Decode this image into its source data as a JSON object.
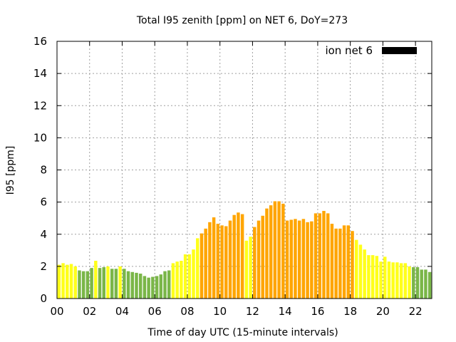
{
  "chart_data": {
    "type": "bar",
    "title": "Total I95 zenith [ppm] on NET 6, DoY=273",
    "xlabel": "Time of day UTC (15-minute intervals)",
    "ylabel": "I95 [ppm]",
    "xlim": [
      0,
      23
    ],
    "ylim": [
      0,
      16
    ],
    "x_ticks": [
      0,
      2,
      4,
      6,
      8,
      10,
      12,
      14,
      16,
      18,
      20,
      22
    ],
    "x_tick_labels": [
      "00",
      "02",
      "04",
      "06",
      "08",
      "10",
      "12",
      "14",
      "16",
      "18",
      "20",
      "22"
    ],
    "y_ticks": [
      0,
      2,
      4,
      6,
      8,
      10,
      12,
      14,
      16
    ],
    "y_tick_labels": [
      "0",
      "2",
      "4",
      "6",
      "8",
      "10",
      "12",
      "14",
      "16"
    ],
    "grid": true,
    "bar_interval_hours": 0.25,
    "legend": {
      "label": "ion net 6",
      "color": "#000000",
      "position": "top-right"
    },
    "color_scale": [
      {
        "max": 2.0,
        "color": "#7ab648"
      },
      {
        "max": 4.0,
        "color": "#ffff1a"
      },
      {
        "max": 99,
        "color": "#ffa500"
      }
    ],
    "values": [
      2.1,
      2.2,
      2.1,
      2.15,
      2.0,
      1.75,
      1.7,
      1.7,
      1.9,
      2.35,
      1.9,
      1.95,
      2.0,
      1.85,
      1.85,
      2.0,
      1.85,
      1.7,
      1.65,
      1.6,
      1.55,
      1.4,
      1.3,
      1.35,
      1.4,
      1.5,
      1.7,
      1.75,
      2.2,
      2.3,
      2.35,
      2.75,
      2.75,
      3.05,
      3.75,
      4.05,
      4.35,
      4.75,
      5.05,
      4.65,
      4.55,
      4.5,
      4.85,
      5.2,
      5.35,
      5.25,
      3.6,
      3.85,
      4.45,
      4.85,
      5.15,
      5.6,
      5.8,
      6.05,
      6.05,
      5.9,
      4.85,
      4.9,
      4.95,
      4.85,
      4.95,
      4.75,
      4.8,
      5.3,
      5.3,
      5.45,
      5.3,
      4.65,
      4.35,
      4.35,
      4.55,
      4.55,
      4.2,
      3.65,
      3.35,
      3.05,
      2.7,
      2.7,
      2.65,
      2.3,
      2.6,
      2.3,
      2.25,
      2.25,
      2.2,
      2.2,
      2.0,
      1.95,
      1.95,
      1.8,
      1.8,
      1.65
    ]
  }
}
